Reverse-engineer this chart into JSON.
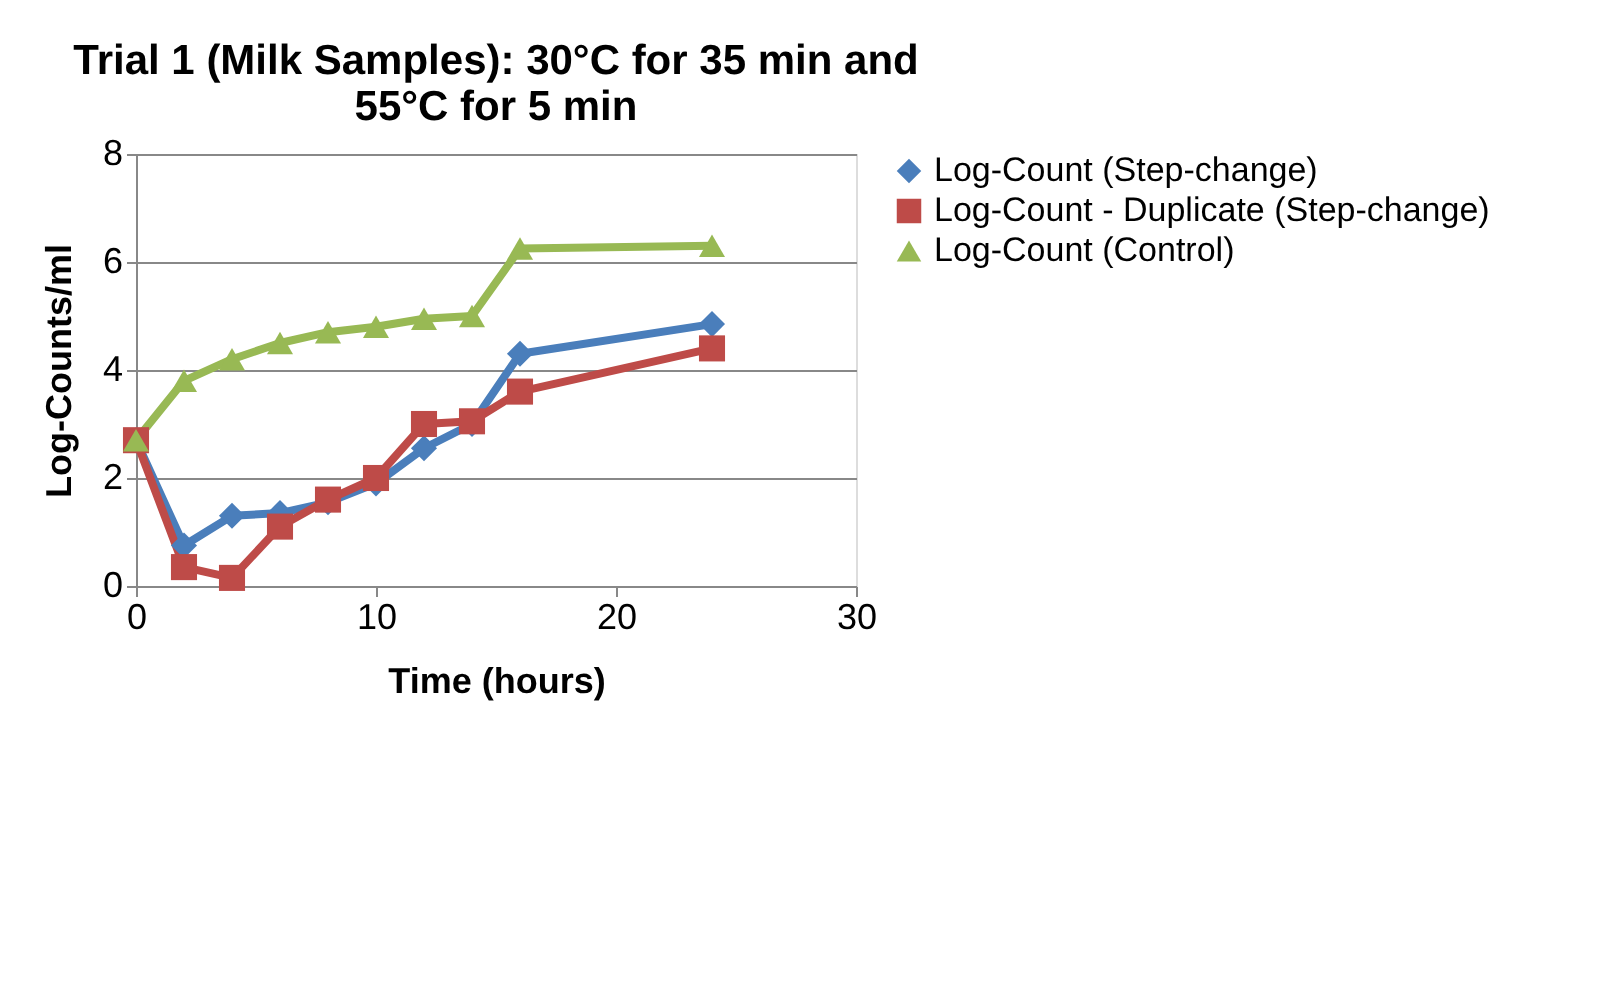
{
  "chart_data": {
    "type": "line",
    "title": "Trial 1 (Milk Samples): 30°C for 35 min and 55°C for 5 min",
    "xlabel": "Time (hours)",
    "ylabel": "Log-Counts/ml",
    "x": [
      0,
      2,
      4,
      6,
      8,
      10,
      12,
      14,
      16,
      24
    ],
    "series": [
      {
        "name": "Log-Count (Step-change)",
        "color": "#4a7ebb",
        "marker": "diamond",
        "values": [
          2.7,
          0.75,
          1.3,
          1.35,
          1.55,
          1.9,
          2.55,
          3.0,
          4.3,
          4.85
        ]
      },
      {
        "name": "Log-Count - Duplicate (Step-change)",
        "color": "#be4b48",
        "marker": "square",
        "values": [
          2.7,
          0.35,
          0.15,
          1.1,
          1.6,
          2.0,
          3.0,
          3.05,
          3.6,
          4.4
        ]
      },
      {
        "name": "Log-Count (Control)",
        "color": "#98b954",
        "marker": "triangle",
        "values": [
          2.7,
          3.8,
          4.2,
          4.5,
          4.7,
          4.8,
          4.95,
          5.0,
          6.25,
          6.3
        ]
      }
    ],
    "xlim": [
      0,
      30
    ],
    "xticks": [
      0,
      10,
      20,
      30
    ],
    "ylim": [
      0,
      8
    ],
    "yticks": [
      0,
      2,
      4,
      6,
      8
    ],
    "grid": "y",
    "legend": "right",
    "line_style": "solid"
  }
}
